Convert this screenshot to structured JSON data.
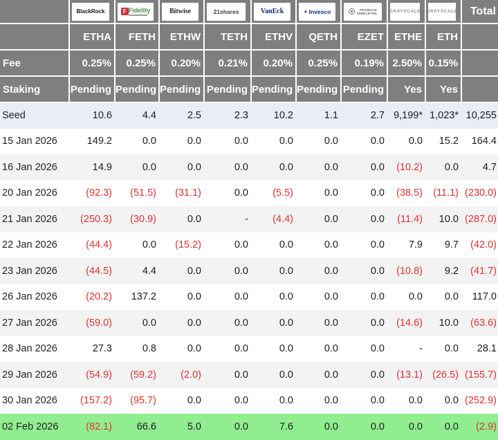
{
  "colors": {
    "header_bg": "#7f7f7f",
    "negative": "#e03131",
    "seed_row_bg": "#e8edf8",
    "stripe_row_bg": "#f3f3f3",
    "latest_row_bg": "#90ee90",
    "fidelity_red": "#cf3339",
    "fidelity_green": "#3f8f3f"
  },
  "chart_data": {
    "type": "table",
    "total_label": "Total",
    "fee_label": "Fee",
    "staking_label": "Staking",
    "providers": [
      {
        "logo": "blackrock",
        "name": "BlackRock",
        "ticker": "ETHA",
        "fee": "0.25%",
        "staking": "Pending"
      },
      {
        "logo": "fidelity",
        "name": "Fidelity",
        "ticker": "FETH",
        "fee": "0.25%",
        "staking": "Pending"
      },
      {
        "logo": "bitwise",
        "name": "Bitwise",
        "ticker": "ETHW",
        "fee": "0.20%",
        "staking": "Pending"
      },
      {
        "logo": "21shares",
        "name": "21shares",
        "ticker": "TETH",
        "fee": "0.21%",
        "staking": "Pending"
      },
      {
        "logo": "vaneck",
        "name": "VanEck",
        "ticker": "ETHV",
        "fee": "0.20%",
        "staking": "Pending"
      },
      {
        "logo": "invesco",
        "name": "Invesco",
        "ticker": "QETH",
        "fee": "0.25%",
        "staking": "Pending"
      },
      {
        "logo": "franklin",
        "name": "FRANKLIN TEMPLETON",
        "name_line1": "FRANKLIN",
        "name_line2": "TEMPLETON",
        "ticker": "EZET",
        "fee": "0.19%",
        "staking": "Pending"
      },
      {
        "logo": "grayscale",
        "name": "GRAYSCALE",
        "ticker": "ETHE",
        "fee": "2.50%",
        "staking": "Yes"
      },
      {
        "logo": "grayscale",
        "name": "GRAYSCALE",
        "ticker": "ETH",
        "fee": "0.15%",
        "staking": "Yes"
      }
    ],
    "rows": [
      {
        "label": "Seed",
        "values": [
          "10.6",
          "4.4",
          "2.5",
          "2.3",
          "10.2",
          "1.1",
          "2.7",
          "9,199*",
          "1,023*"
        ],
        "total": "10,255",
        "highlight": "seed"
      },
      {
        "label": "15 Jan 2026",
        "values": [
          "149.2",
          "0.0",
          "0.0",
          "0.0",
          "0.0",
          "0.0",
          "0.0",
          "0.0",
          "15.2"
        ],
        "total": "164.4",
        "highlight": null
      },
      {
        "label": "16 Jan 2026",
        "values": [
          "14.9",
          "0.0",
          "0.0",
          "0.0",
          "0.0",
          "0.0",
          "0.0",
          "(10.2)",
          "0.0"
        ],
        "total": "4.7",
        "highlight": null
      },
      {
        "label": "20 Jan 2026",
        "values": [
          "(92.3)",
          "(51.5)",
          "(31.1)",
          "0.0",
          "(5.5)",
          "0.0",
          "0.0",
          "(38.5)",
          "(11.1)"
        ],
        "total": "(230.0)",
        "highlight": null
      },
      {
        "label": "21 Jan 2026",
        "values": [
          "(250.3)",
          "(30.9)",
          "0.0",
          "-",
          "(4.4)",
          "0.0",
          "0.0",
          "(11.4)",
          "10.0"
        ],
        "total": "(287.0)",
        "highlight": null
      },
      {
        "label": "22 Jan 2026",
        "values": [
          "(44.4)",
          "0.0",
          "(15.2)",
          "0.0",
          "0.0",
          "0.0",
          "0.0",
          "7.9",
          "9.7"
        ],
        "total": "(42.0)",
        "highlight": null
      },
      {
        "label": "23 Jan 2026",
        "values": [
          "(44.5)",
          "4.4",
          "0.0",
          "0.0",
          "0.0",
          "0.0",
          "0.0",
          "(10.8)",
          "9.2"
        ],
        "total": "(41.7)",
        "highlight": null
      },
      {
        "label": "26 Jan 2026",
        "values": [
          "(20.2)",
          "137.2",
          "0.0",
          "0.0",
          "0.0",
          "0.0",
          "0.0",
          "0.0",
          "0.0"
        ],
        "total": "117.0",
        "highlight": null
      },
      {
        "label": "27 Jan 2026",
        "values": [
          "(59.0)",
          "0.0",
          "0.0",
          "0.0",
          "0.0",
          "0.0",
          "0.0",
          "(14.6)",
          "10.0"
        ],
        "total": "(63.6)",
        "highlight": null
      },
      {
        "label": "28 Jan 2026",
        "values": [
          "27.3",
          "0.8",
          "0.0",
          "0.0",
          "0.0",
          "0.0",
          "0.0",
          "-",
          "0.0"
        ],
        "total": "28.1",
        "highlight": null
      },
      {
        "label": "29 Jan 2026",
        "values": [
          "(54.9)",
          "(59.2)",
          "(2.0)",
          "0.0",
          "0.0",
          "0.0",
          "0.0",
          "(13.1)",
          "(26.5)"
        ],
        "total": "(155.7)",
        "highlight": null
      },
      {
        "label": "30 Jan 2026",
        "values": [
          "(157.2)",
          "(95.7)",
          "0.0",
          "0.0",
          "0.0",
          "0.0",
          "0.0",
          "0.0",
          "0.0"
        ],
        "total": "(252.9)",
        "highlight": null
      },
      {
        "label": "02 Feb 2026",
        "values": [
          "(82.1)",
          "66.6",
          "5.0",
          "0.0",
          "7.6",
          "0.0",
          "0.0",
          "0.0",
          "0.0"
        ],
        "total": "(2.9)",
        "highlight": "latest"
      }
    ]
  }
}
